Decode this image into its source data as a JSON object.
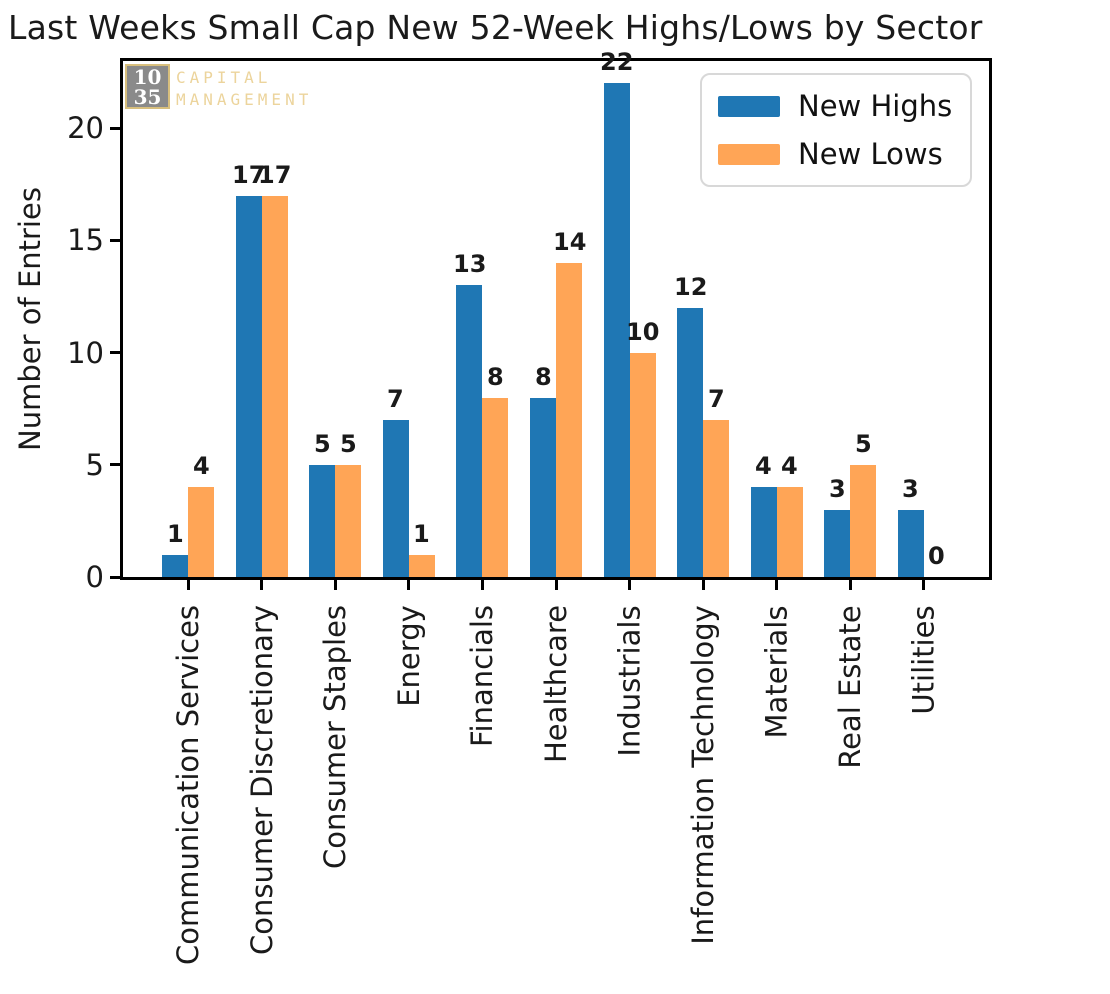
{
  "title": "Last Weeks Small Cap New 52-Week Highs/Lows by Sector",
  "logo": {
    "square_line1": "10",
    "square_line2": "35",
    "name_line1": "CAPITAL",
    "name_line2": "MANAGEMENT",
    "square_bg": "#8a8a8a",
    "square_border": "#d8bf7d",
    "number_color": "#ffffff",
    "text_color": "#ecd49c"
  },
  "chart_data": {
    "type": "bar",
    "title": "Last Weeks Small Cap New 52-Week Highs/Lows by Sector",
    "xlabel": "",
    "ylabel": "Number of Entries",
    "categories": [
      "Communication Services",
      "Consumer Discretionary",
      "Consumer Staples",
      "Energy",
      "Financials",
      "Healthcare",
      "Industrials",
      "Information Technology",
      "Materials",
      "Real Estate",
      "Utilities"
    ],
    "series": [
      {
        "name": "New Highs",
        "color": "#1f77b4",
        "values": [
          1,
          17,
          5,
          7,
          13,
          8,
          22,
          12,
          4,
          3,
          3
        ]
      },
      {
        "name": "New Lows",
        "color": "#ffa556",
        "values": [
          4,
          17,
          5,
          1,
          8,
          14,
          10,
          7,
          4,
          5,
          0
        ]
      }
    ],
    "yticks": [
      0,
      5,
      10,
      15,
      20
    ],
    "ylim": [
      0,
      23
    ],
    "grid": false,
    "bar_value_labels": true,
    "x_tick_rotation_degrees": 90,
    "legend_position": "upper right"
  }
}
